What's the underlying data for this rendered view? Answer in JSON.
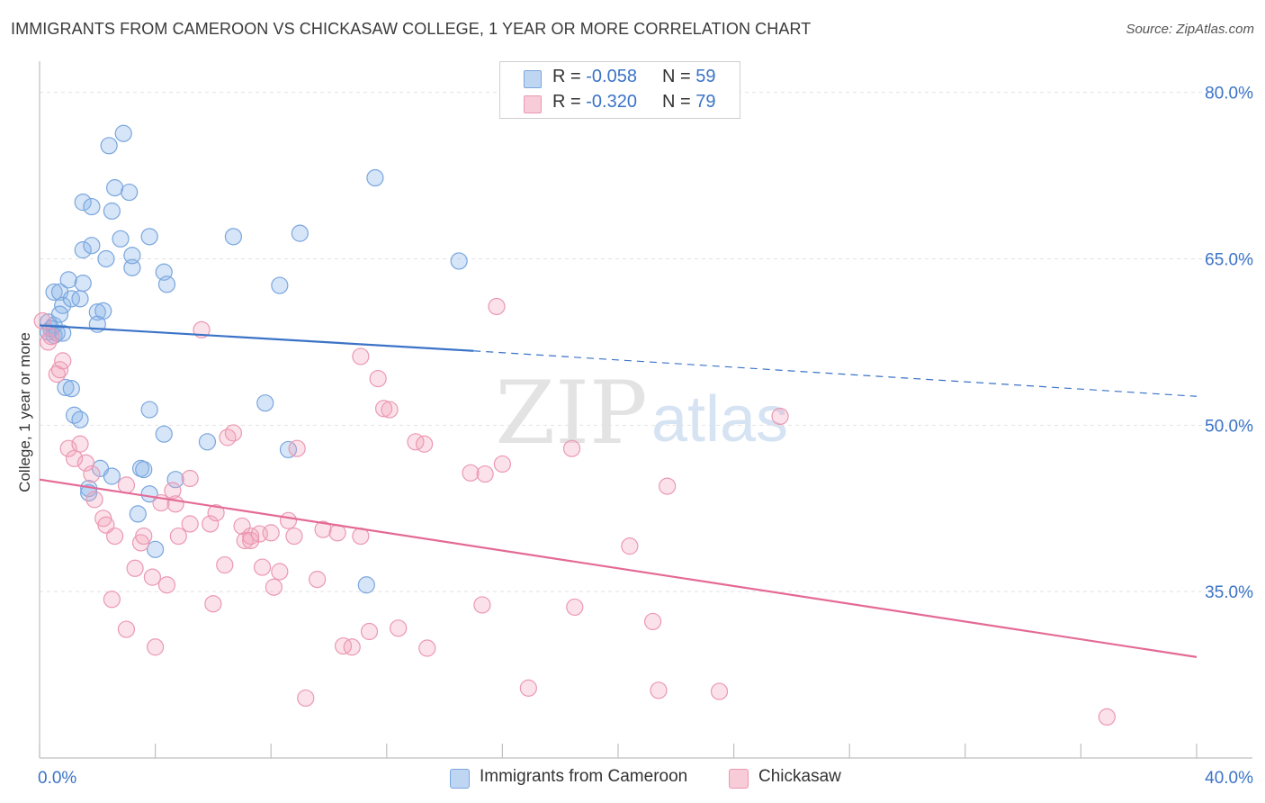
{
  "title": "IMMIGRANTS FROM CAMEROON VS CHICKASAW COLLEGE, 1 YEAR OR MORE CORRELATION CHART",
  "source": "Source: ZipAtlas.com",
  "watermark": {
    "zip": "ZIP",
    "atlas": "atlas"
  },
  "legend": {
    "rows": [
      {
        "r_label": "R = ",
        "r_value": "-0.058",
        "n_label": "N = ",
        "n_value": "59",
        "color": "#8ab4e8"
      },
      {
        "r_label": "R = ",
        "r_value": "-0.320",
        "n_label": "N = ",
        "n_value": "79",
        "color": "#f2a0b8"
      }
    ]
  },
  "bottom_legend": [
    {
      "label": "Immigrants from Cameroon",
      "color": "#8ab4e8"
    },
    {
      "label": "Chickasaw",
      "color": "#f2a0b8"
    }
  ],
  "colors": {
    "blue": "#5a8fd6",
    "blue_fill": "rgba(138,180,232,0.35)",
    "pink": "#e46a96",
    "pink_fill": "rgba(242,160,184,0.30)",
    "axis_text": "#3b73c7"
  },
  "chart_data": {
    "type": "scatter",
    "xlabel": "",
    "ylabel": "College, 1 year or more",
    "xlim": [
      0,
      40
    ],
    "ylim": [
      20,
      82
    ],
    "x_tick_labels": [
      {
        "value": 0,
        "label": "0.0%"
      },
      {
        "value": 40,
        "label": "40.0%"
      }
    ],
    "y_tick_labels": [
      {
        "value": 80,
        "label": "80.0%"
      },
      {
        "value": 65,
        "label": "65.0%"
      },
      {
        "value": 50,
        "label": "50.0%"
      },
      {
        "value": 35,
        "label": "35.0%"
      }
    ],
    "grid": true,
    "series": [
      {
        "name": "Immigrants from Cameroon",
        "color": "#5a8fd6",
        "trend": {
          "x0": 0,
          "y0": 59.0,
          "x1": 15,
          "y1": 56.7,
          "dash_to": 40,
          "dash_y": 52.6
        },
        "points": [
          [
            0.3,
            59.3
          ],
          [
            0.4,
            58.7
          ],
          [
            0.5,
            59.0
          ],
          [
            0.3,
            58.4
          ],
          [
            0.5,
            58.1
          ],
          [
            0.6,
            58.3
          ],
          [
            0.8,
            58.3
          ],
          [
            0.5,
            62.0
          ],
          [
            0.7,
            62.0
          ],
          [
            0.8,
            60.8
          ],
          [
            0.7,
            60.0
          ],
          [
            1.1,
            61.4
          ],
          [
            1.4,
            61.4
          ],
          [
            1.0,
            63.1
          ],
          [
            1.5,
            62.8
          ],
          [
            2.0,
            60.2
          ],
          [
            2.2,
            60.3
          ],
          [
            2.0,
            59.1
          ],
          [
            0.9,
            53.4
          ],
          [
            1.1,
            53.3
          ],
          [
            1.2,
            50.9
          ],
          [
            1.4,
            50.5
          ],
          [
            1.5,
            65.8
          ],
          [
            1.8,
            66.2
          ],
          [
            2.3,
            65.0
          ],
          [
            1.5,
            70.1
          ],
          [
            1.8,
            69.7
          ],
          [
            2.5,
            69.3
          ],
          [
            2.6,
            71.4
          ],
          [
            3.1,
            71.0
          ],
          [
            2.8,
            66.8
          ],
          [
            3.2,
            64.2
          ],
          [
            3.2,
            65.3
          ],
          [
            3.8,
            67.0
          ],
          [
            4.3,
            63.8
          ],
          [
            4.4,
            62.7
          ],
          [
            2.4,
            75.2
          ],
          [
            2.9,
            76.3
          ],
          [
            6.7,
            67.0
          ],
          [
            8.3,
            62.6
          ],
          [
            9.0,
            67.3
          ],
          [
            11.6,
            72.3
          ],
          [
            14.5,
            64.8
          ],
          [
            3.8,
            51.4
          ],
          [
            4.3,
            49.2
          ],
          [
            5.8,
            48.5
          ],
          [
            7.8,
            52.0
          ],
          [
            8.6,
            47.8
          ],
          [
            2.1,
            46.1
          ],
          [
            1.7,
            44.3
          ],
          [
            1.7,
            43.9
          ],
          [
            2.5,
            45.4
          ],
          [
            3.5,
            46.1
          ],
          [
            3.6,
            46.0
          ],
          [
            4.7,
            45.1
          ],
          [
            3.8,
            43.8
          ],
          [
            3.4,
            42.0
          ],
          [
            11.3,
            35.6
          ],
          [
            4.0,
            38.8
          ]
        ]
      },
      {
        "name": "Chickasaw",
        "color": "#e46a96",
        "trend": {
          "x0": 0,
          "y0": 45.1,
          "x1": 40,
          "y1": 29.1
        },
        "points": [
          [
            0.1,
            59.4
          ],
          [
            0.3,
            57.5
          ],
          [
            0.4,
            58.0
          ],
          [
            0.6,
            54.6
          ],
          [
            0.7,
            55.0
          ],
          [
            0.8,
            55.8
          ],
          [
            1.0,
            47.9
          ],
          [
            1.2,
            47.0
          ],
          [
            1.4,
            48.3
          ],
          [
            1.6,
            46.6
          ],
          [
            1.8,
            45.6
          ],
          [
            1.9,
            43.3
          ],
          [
            2.2,
            41.6
          ],
          [
            2.3,
            41.0
          ],
          [
            2.6,
            40.0
          ],
          [
            2.5,
            34.3
          ],
          [
            3.0,
            31.6
          ],
          [
            3.0,
            44.6
          ],
          [
            3.3,
            37.1
          ],
          [
            3.5,
            39.4
          ],
          [
            3.6,
            40.0
          ],
          [
            3.9,
            36.3
          ],
          [
            4.0,
            30.0
          ],
          [
            4.2,
            43.0
          ],
          [
            4.4,
            35.6
          ],
          [
            4.6,
            44.1
          ],
          [
            4.7,
            42.9
          ],
          [
            4.8,
            40.0
          ],
          [
            5.2,
            41.1
          ],
          [
            5.2,
            45.2
          ],
          [
            5.6,
            58.6
          ],
          [
            5.9,
            41.1
          ],
          [
            6.0,
            33.9
          ],
          [
            6.1,
            42.1
          ],
          [
            6.4,
            37.4
          ],
          [
            6.5,
            48.9
          ],
          [
            6.7,
            49.3
          ],
          [
            7.0,
            40.9
          ],
          [
            7.1,
            39.6
          ],
          [
            7.3,
            40.0
          ],
          [
            7.3,
            39.6
          ],
          [
            7.7,
            37.2
          ],
          [
            7.6,
            40.2
          ],
          [
            8.0,
            40.3
          ],
          [
            8.1,
            35.4
          ],
          [
            8.3,
            36.8
          ],
          [
            8.6,
            41.4
          ],
          [
            8.8,
            40.0
          ],
          [
            8.9,
            47.9
          ],
          [
            9.2,
            25.4
          ],
          [
            9.6,
            36.1
          ],
          [
            9.8,
            40.6
          ],
          [
            10.3,
            40.3
          ],
          [
            10.5,
            30.1
          ],
          [
            10.8,
            30.0
          ],
          [
            11.1,
            40.0
          ],
          [
            11.1,
            56.2
          ],
          [
            11.4,
            31.4
          ],
          [
            11.7,
            54.2
          ],
          [
            11.9,
            51.5
          ],
          [
            12.1,
            51.4
          ],
          [
            12.4,
            31.7
          ],
          [
            13.0,
            48.5
          ],
          [
            13.3,
            48.3
          ],
          [
            13.4,
            29.9
          ],
          [
            14.9,
            45.7
          ],
          [
            15.4,
            45.6
          ],
          [
            15.3,
            33.8
          ],
          [
            15.8,
            60.7
          ],
          [
            16.0,
            46.5
          ],
          [
            16.9,
            26.3
          ],
          [
            18.4,
            47.9
          ],
          [
            18.5,
            33.6
          ],
          [
            20.4,
            39.1
          ],
          [
            21.2,
            32.3
          ],
          [
            21.4,
            26.1
          ],
          [
            21.7,
            44.5
          ],
          [
            23.5,
            26.0
          ],
          [
            25.6,
            50.8
          ],
          [
            36.9,
            23.7
          ]
        ]
      }
    ]
  }
}
